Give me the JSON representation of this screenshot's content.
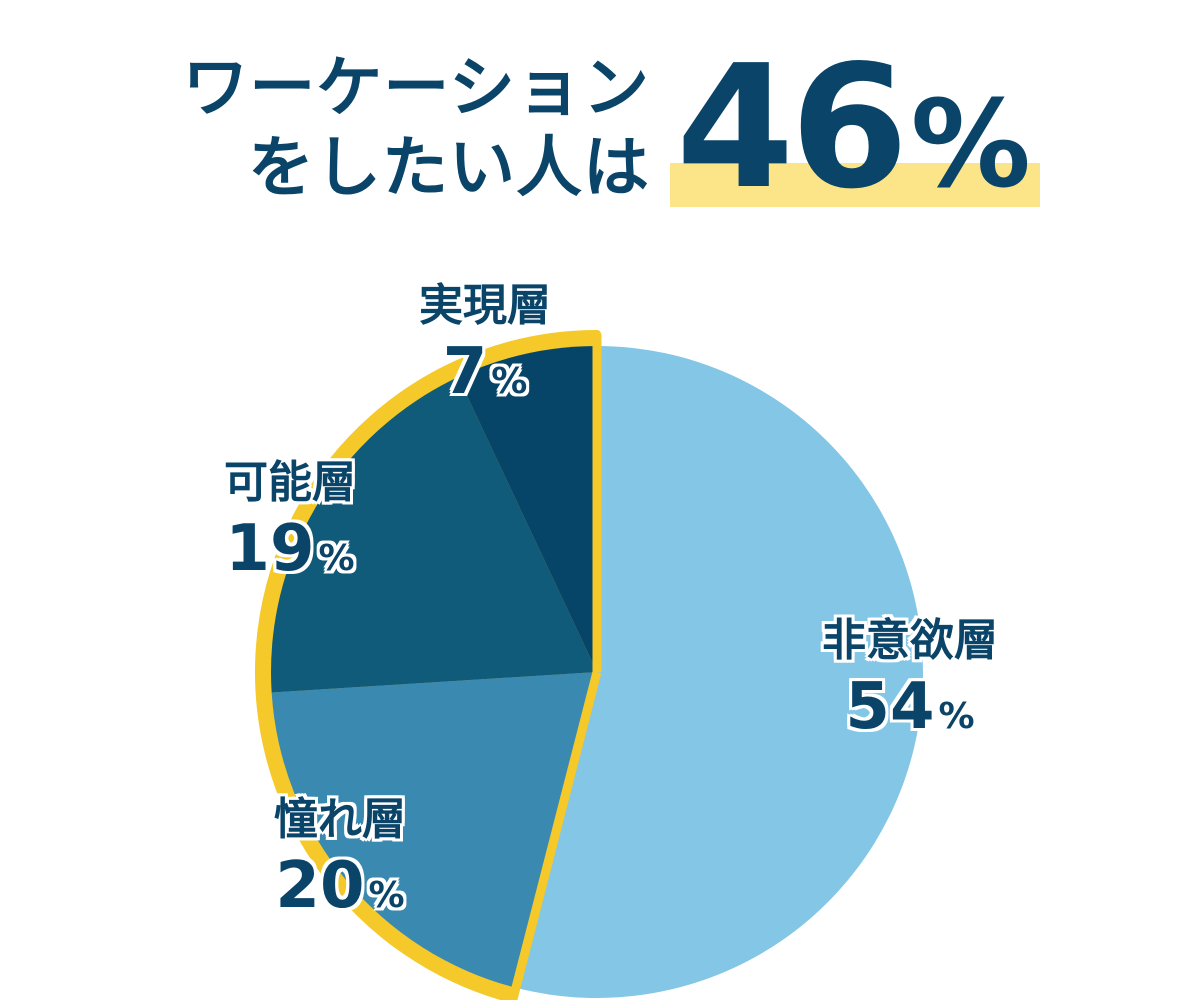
{
  "headline": {
    "line1": "ワーケーション",
    "line2": "をしたい人は",
    "value": "46",
    "unit": "%"
  },
  "colors": {
    "navy": "#0a4468",
    "yellow_highlight": "#fce488",
    "ring": "#f5c92a"
  },
  "chart_data": {
    "type": "pie",
    "categories": [
      "非意欲層",
      "憧れ層",
      "可能層",
      "実現層"
    ],
    "values": [
      54,
      20,
      19,
      7
    ],
    "unit": "%",
    "colors": [
      "#84c6e6",
      "#3a89b0",
      "#105a7a",
      "#064568"
    ],
    "highlighted": [
      "憧れ層",
      "可能層",
      "実現層"
    ],
    "highlight_total": 46
  }
}
